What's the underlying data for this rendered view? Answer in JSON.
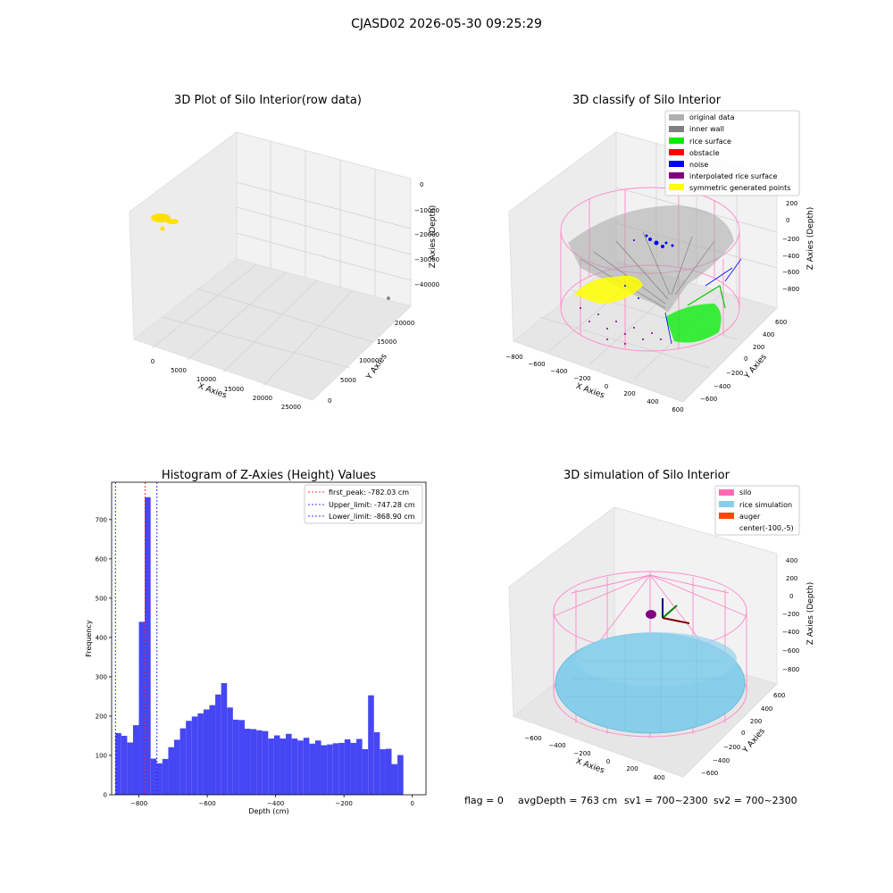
{
  "suptitle": "CJASD02 2026-05-30 09:25:29",
  "footer": {
    "flag": "flag = 0",
    "avg_depth": "avgDepth = 763 cm",
    "sv1": "sv1 = 700~2300",
    "sv2": "sv2 = 700~2300"
  },
  "chart_data": [
    {
      "type": "scatter",
      "title": "3D Plot of Silo Interior(row data)",
      "xlabel": "X Axies",
      "ylabel": "Y Axies",
      "zlabel": "Z Axies (Depth)",
      "x_ticks": [
        "0",
        "5000",
        "10000",
        "15000",
        "20000",
        "25000"
      ],
      "y_ticks": [
        "0",
        "5000",
        "10000",
        "15000",
        "20000"
      ],
      "z_ticks": [
        "0",
        "−10000",
        "−20000",
        "−30000",
        "−40000"
      ],
      "xlim": [
        -2000,
        27000
      ],
      "ylim": [
        -1000,
        21000
      ],
      "zlim": [
        -44000,
        2000
      ],
      "grid": true,
      "colors": {
        "points": "#ffe000",
        "outlier": "#888888"
      }
    },
    {
      "type": "scatter",
      "title": "3D classify of Silo Interior",
      "xlabel": "X Axies",
      "ylabel": "Y Axies",
      "zlabel": "Z Axies (Depth)",
      "x_ticks": [
        "−800",
        "−600",
        "−400",
        "−200",
        "0",
        "200",
        "400",
        "600"
      ],
      "y_ticks": [
        "−600",
        "−400",
        "−200",
        "0",
        "200",
        "400",
        "600"
      ],
      "z_ticks": [
        "200",
        "0",
        "−200",
        "−400",
        "−600",
        "−800"
      ],
      "grid": true,
      "legend": {
        "position": "upper right",
        "entries": [
          {
            "label": "original data",
            "color": "#b0b0b0"
          },
          {
            "label": "inner wall",
            "color": "#808080"
          },
          {
            "label": "rice surface",
            "color": "#00ee00"
          },
          {
            "label": "obstacle",
            "color": "#ff0000"
          },
          {
            "label": "noise",
            "color": "#0000ff"
          },
          {
            "label": "interpolated rice surface",
            "color": "#800080"
          },
          {
            "label": "symmetric generated points",
            "color": "#ffff00"
          }
        ]
      }
    },
    {
      "type": "bar",
      "title": "Histogram of Z-Axies (Height) Values",
      "xlabel": "Depth (cm)",
      "ylabel": "Frequency",
      "xlim": [
        -880,
        40
      ],
      "ylim": [
        0,
        795
      ],
      "x_ticks": [
        -800,
        -600,
        -400,
        -200,
        0
      ],
      "x_tick_labels": [
        "−800",
        "−600",
        "−400",
        "−200",
        "0"
      ],
      "y_ticks": [
        0,
        100,
        200,
        300,
        400,
        500,
        600,
        700
      ],
      "bin_start": -869,
      "bin_width": 17.2,
      "values": [
        157,
        150,
        133,
        177,
        440,
        757,
        92,
        80,
        91,
        121,
        140,
        169,
        188,
        199,
        207,
        217,
        228,
        255,
        284,
        222,
        191,
        190,
        168,
        167,
        164,
        162,
        143,
        151,
        143,
        155,
        143,
        138,
        145,
        130,
        138,
        126,
        128,
        131,
        132,
        141,
        132,
        142,
        116,
        253,
        159,
        116,
        117,
        78,
        101
      ],
      "bar_color": "#4646f5",
      "lines": [
        {
          "label": "first_peak: -782.03 cm",
          "x": -782.03,
          "color": "#ff0000"
        },
        {
          "label": "Upper_limit: -747.28 cm",
          "x": -747.28,
          "color": "#0000ff"
        },
        {
          "label": "Lower_limit: -868.90 cm",
          "x": -868.9,
          "color": "#0000ff"
        }
      ],
      "legend": {
        "position": "upper right"
      }
    },
    {
      "type": "scatter",
      "title": "3D simulation of Silo Interior",
      "xlabel": "X Axies",
      "ylabel": "Y Axies",
      "zlabel": "Z Axies (Depth)",
      "x_ticks": [
        "−600",
        "−400",
        "−200",
        "0",
        "200",
        "400"
      ],
      "y_ticks": [
        "−600",
        "−400",
        "−200",
        "0",
        "200",
        "400",
        "600"
      ],
      "z_ticks": [
        "400",
        "200",
        "0",
        "−200",
        "−400",
        "−600",
        "−800"
      ],
      "grid": true,
      "legend": {
        "position": "upper right",
        "entries": [
          {
            "label": "silo",
            "color": "#ff69b4"
          },
          {
            "label": "rice simulation",
            "color": "#87ceeb"
          },
          {
            "label": "auger",
            "color": "#ff4500"
          },
          {
            "label": "center(-100,-5)",
            "color": ""
          }
        ]
      }
    }
  ]
}
